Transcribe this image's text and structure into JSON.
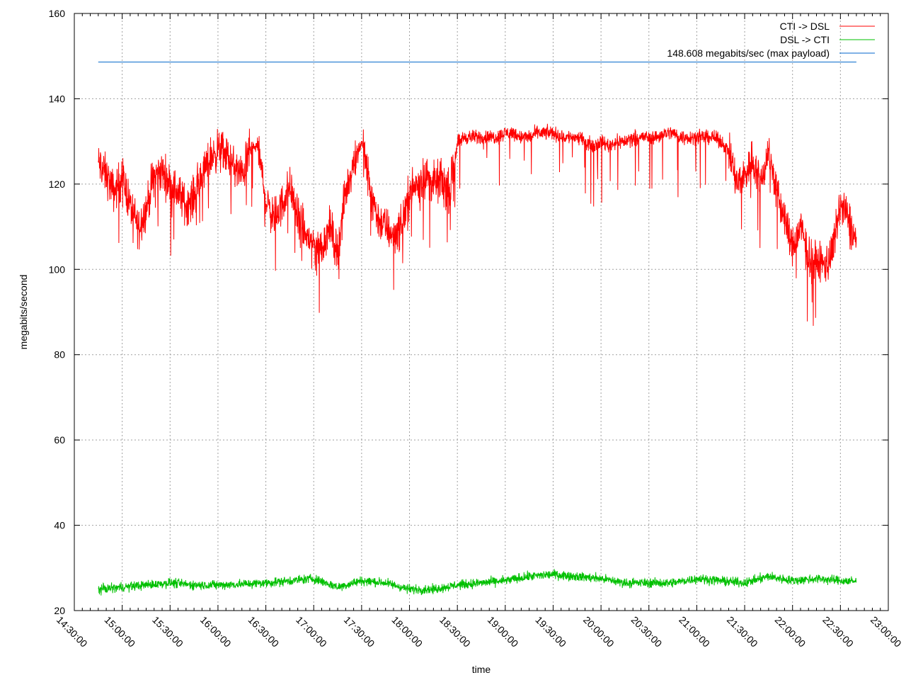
{
  "chart_data": {
    "type": "line",
    "title": "",
    "xlabel": "time",
    "ylabel": "megabits/second",
    "ylim": [
      20,
      160
    ],
    "yticks": [
      20,
      40,
      60,
      80,
      100,
      120,
      140,
      160
    ],
    "xlim": [
      "14:30:00",
      "23:00:00"
    ],
    "xticks": [
      "14:30:00",
      "15:00:00",
      "15:30:00",
      "16:00:00",
      "16:30:00",
      "17:00:00",
      "17:30:00",
      "18:00:00",
      "18:30:00",
      "19:00:00",
      "19:30:00",
      "20:00:00",
      "20:30:00",
      "21:00:00",
      "21:30:00",
      "22:00:00",
      "22:30:00",
      "23:00:00"
    ],
    "grid": true,
    "legend_position": "top-right",
    "series": [
      {
        "name": "CTI -> DSL",
        "color": "#ff0000",
        "noise": 7,
        "x": [
          "14:45:00",
          "14:50:00",
          "14:55:00",
          "15:00:00",
          "15:05:00",
          "15:10:00",
          "15:15:00",
          "15:20:00",
          "15:25:00",
          "15:30:00",
          "15:35:00",
          "15:40:00",
          "15:45:00",
          "15:50:00",
          "15:55:00",
          "16:00:00",
          "16:05:00",
          "16:10:00",
          "16:15:00",
          "16:20:00",
          "16:25:00",
          "16:30:00",
          "16:35:00",
          "16:40:00",
          "16:45:00",
          "16:50:00",
          "16:55:00",
          "17:00:00",
          "17:05:00",
          "17:10:00",
          "17:15:00",
          "17:20:00",
          "17:25:00",
          "17:30:00",
          "17:35:00",
          "17:40:00",
          "17:45:00",
          "17:50:00",
          "17:55:00",
          "18:00:00",
          "18:05:00",
          "18:10:00",
          "18:15:00",
          "18:20:00",
          "18:25:00",
          "18:30:00",
          "18:35:00",
          "18:40:00",
          "18:45:00",
          "18:50:00",
          "18:55:00",
          "19:00:00",
          "19:05:00",
          "19:10:00",
          "19:15:00",
          "19:20:00",
          "19:25:00",
          "19:30:00",
          "19:35:00",
          "19:40:00",
          "19:45:00",
          "19:50:00",
          "19:55:00",
          "20:00:00",
          "20:05:00",
          "20:10:00",
          "20:15:00",
          "20:20:00",
          "20:25:00",
          "20:30:00",
          "20:35:00",
          "20:40:00",
          "20:45:00",
          "20:50:00",
          "20:55:00",
          "21:00:00",
          "21:05:00",
          "21:10:00",
          "21:15:00",
          "21:20:00",
          "21:25:00",
          "21:30:00",
          "21:35:00",
          "21:40:00",
          "21:45:00",
          "21:50:00",
          "21:55:00",
          "22:00:00",
          "22:05:00",
          "22:10:00",
          "22:15:00",
          "22:20:00",
          "22:25:00",
          "22:30:00",
          "22:35:00",
          "22:40:00"
        ],
        "values": [
          125,
          122,
          118,
          122,
          115,
          110,
          114,
          122,
          123,
          120,
          118,
          115,
          117,
          122,
          126,
          128,
          127,
          124,
          122,
          128,
          129,
          116,
          112,
          115,
          120,
          112,
          108,
          106,
          105,
          110,
          104,
          118,
          125,
          130,
          120,
          112,
          110,
          108,
          110,
          118,
          120,
          122,
          120,
          121,
          118,
          130,
          131,
          131,
          131,
          131,
          131,
          132,
          132,
          131,
          131,
          132,
          132,
          132,
          131,
          131,
          131,
          130,
          129,
          130,
          129,
          130,
          130,
          131,
          131,
          131,
          131,
          132,
          132,
          131,
          131,
          131,
          131,
          131,
          130,
          128,
          120,
          122,
          126,
          120,
          128,
          118,
          112,
          105,
          110,
          103,
          102,
          101,
          104,
          115,
          112,
          106
        ]
      },
      {
        "name": "DSL -> CTI",
        "color": "#00c000",
        "noise": 1.6,
        "x": [
          "14:45:00",
          "15:00:00",
          "15:15:00",
          "15:30:00",
          "15:45:00",
          "16:00:00",
          "16:15:00",
          "16:30:00",
          "16:45:00",
          "17:00:00",
          "17:15:00",
          "17:30:00",
          "17:45:00",
          "18:00:00",
          "18:15:00",
          "18:30:00",
          "18:45:00",
          "19:00:00",
          "19:15:00",
          "19:30:00",
          "19:45:00",
          "20:00:00",
          "20:15:00",
          "20:30:00",
          "20:45:00",
          "21:00:00",
          "21:15:00",
          "21:30:00",
          "21:45:00",
          "22:00:00",
          "22:15:00",
          "22:30:00",
          "22:40:00"
        ],
        "values": [
          25,
          25.5,
          26,
          26.5,
          26,
          26,
          26.2,
          26.5,
          27,
          27.5,
          25.5,
          27,
          26.5,
          25,
          25,
          26,
          26.5,
          27,
          28,
          28.5,
          28,
          27.5,
          26.5,
          26.5,
          26.5,
          27.5,
          27,
          26.5,
          28,
          27,
          27.5,
          27,
          26.8
        ]
      },
      {
        "name": "148.608 megabits/sec (max payload)",
        "color": "#0066cc",
        "noise": 0,
        "x": [
          "14:45:00",
          "22:40:00"
        ],
        "values": [
          148.608,
          148.608
        ]
      }
    ]
  }
}
